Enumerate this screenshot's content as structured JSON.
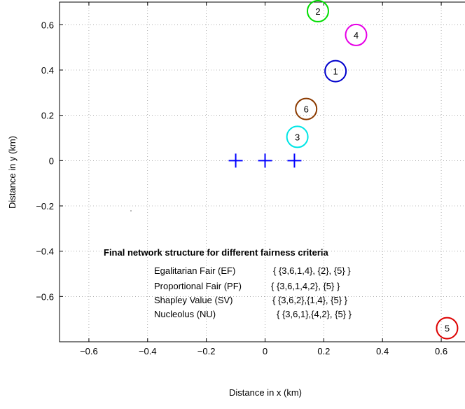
{
  "chart_data": {
    "type": "scatter",
    "xlabel": "Distance in x (km)",
    "ylabel": "Distance in y (km)",
    "xlim": [
      -0.7,
      0.7
    ],
    "ylim": [
      -0.8,
      0.7
    ],
    "xticks": [
      -0.6,
      -0.4,
      -0.2,
      0,
      0.2,
      0.4,
      0.6
    ],
    "xtick_labels": [
      "−0.6",
      "−0.4",
      "−0.2",
      "0",
      "0.2",
      "0.4",
      "0.6"
    ],
    "yticks": [
      -0.6,
      -0.4,
      -0.2,
      0,
      0.2,
      0.4,
      0.6
    ],
    "ytick_labels": [
      "−0.6",
      "−0.4",
      "−0.2",
      "0",
      "0.2",
      "0.4",
      "0.6"
    ],
    "grid": true,
    "base_stations": {
      "marker": "plus",
      "color": "#0000ff",
      "points": [
        {
          "x": -0.1,
          "y": 0
        },
        {
          "x": 0.0,
          "y": 0
        },
        {
          "x": 0.1,
          "y": 0
        }
      ]
    },
    "users": [
      {
        "label": "1",
        "x": 0.24,
        "y": 0.395,
        "color": "#0000cc"
      },
      {
        "label": "2",
        "x": 0.18,
        "y": 0.66,
        "color": "#00dd00"
      },
      {
        "label": "3",
        "x": 0.11,
        "y": 0.105,
        "color": "#00e5e5"
      },
      {
        "label": "4",
        "x": 0.31,
        "y": 0.555,
        "color": "#e600e6"
      },
      {
        "label": "5",
        "x": 0.62,
        "y": -0.74,
        "color": "#dd0000"
      },
      {
        "label": "6",
        "x": 0.14,
        "y": 0.228,
        "color": "#8b3a00"
      }
    ],
    "annotation": {
      "title": "Final network structure for different fairness criteria",
      "rows": [
        {
          "name": "Egalitarian Fair (EF)",
          "value": "{ {3,6,1,4}, {2}, {5} }"
        },
        {
          "name": "Proportional Fair (PF)",
          "value": "{ {3,6,1,4,2}, {5} }"
        },
        {
          "name": "Shapley Value (SV)",
          "value": "{ {3,6,2},{1,4}, {5} }"
        },
        {
          "name": "Nucleolus (NU)",
          "value": "{ {3,6,1},{4,2}, {5} }"
        }
      ]
    }
  }
}
